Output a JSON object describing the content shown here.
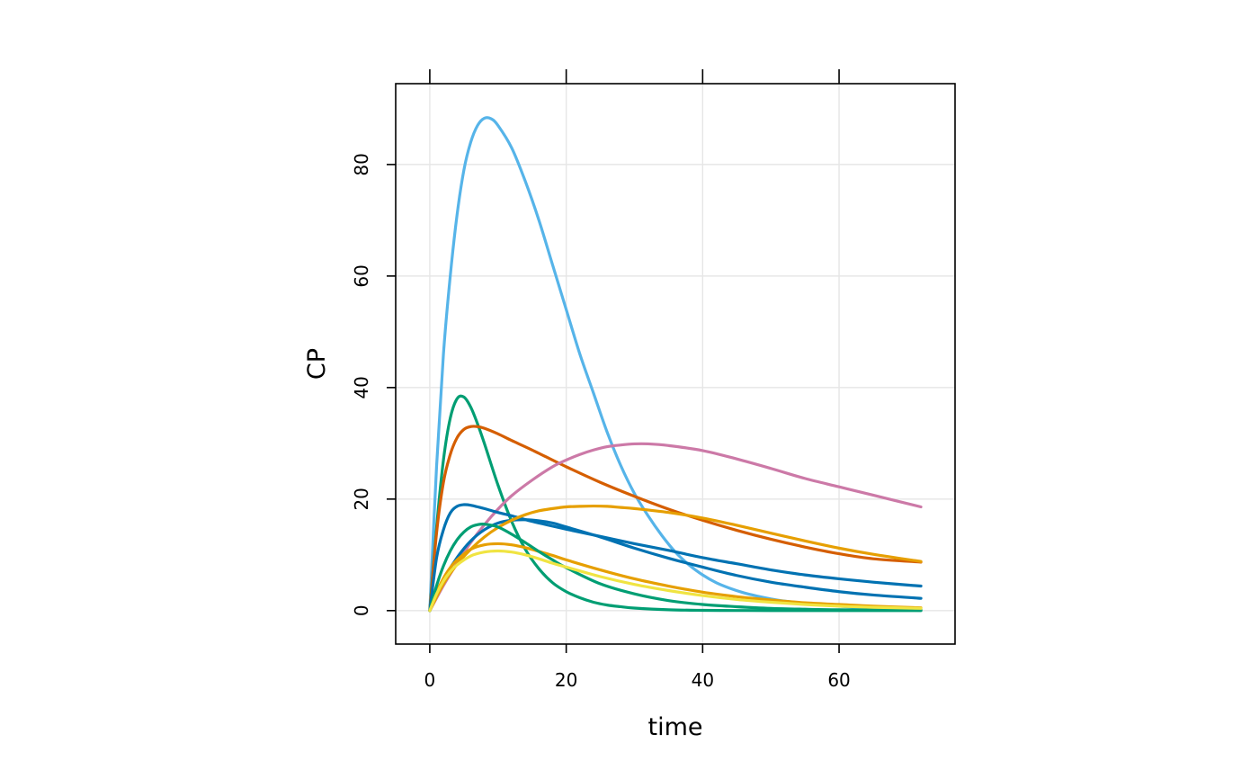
{
  "chart_data": {
    "type": "line",
    "title": "",
    "xlabel": "time",
    "ylabel": "CP",
    "xlim": [
      -5,
      77
    ],
    "ylim": [
      -6,
      94.5
    ],
    "xticks": [
      0,
      20,
      40,
      60
    ],
    "yticks": [
      0,
      20,
      40,
      60,
      80
    ],
    "grid": true,
    "legend": "none",
    "series": [
      {
        "color": "#56B4E9",
        "x": [
          0,
          1,
          2,
          3,
          4,
          5,
          6,
          7,
          8,
          9,
          10,
          12,
          14,
          16,
          18,
          20,
          22,
          24,
          26,
          28,
          30,
          32,
          34,
          36,
          38,
          40,
          42,
          44,
          46,
          48,
          50,
          52,
          55,
          58,
          60,
          64,
          68,
          72
        ],
        "y": [
          0,
          26,
          46,
          60,
          71,
          79,
          84,
          87,
          88.3,
          88.2,
          87,
          83,
          77,
          70,
          62,
          54,
          46,
          39,
          32,
          26,
          21,
          17,
          13.5,
          10.5,
          8.2,
          6.4,
          5,
          4,
          3.2,
          2.6,
          2.1,
          1.7,
          1.3,
          1.0,
          0.8,
          0.5,
          0.3,
          0.2
        ]
      },
      {
        "color": "#009E73",
        "x": [
          0,
          1,
          2,
          3,
          4,
          5,
          6,
          7,
          8,
          10,
          12,
          14,
          16,
          18,
          20,
          22,
          24,
          26,
          28,
          30,
          35,
          40,
          45,
          50,
          60,
          72
        ],
        "y": [
          0,
          15,
          27,
          34.5,
          38,
          38.3,
          36.5,
          33.5,
          30,
          22.5,
          16,
          11,
          7.5,
          5,
          3.4,
          2.3,
          1.5,
          1.0,
          0.7,
          0.45,
          0.15,
          0.05,
          0.02,
          0.01,
          0,
          0
        ]
      },
      {
        "color": "#D55E00",
        "x": [
          0,
          1,
          2,
          3,
          4,
          5,
          6,
          7,
          8,
          10,
          12,
          15,
          20,
          25,
          30,
          35,
          40,
          45,
          50,
          55,
          60,
          65,
          72
        ],
        "y": [
          0,
          14,
          23,
          28,
          31,
          32.5,
          33,
          33,
          32.7,
          31.7,
          30.5,
          28.8,
          25.8,
          23,
          20.5,
          18.2,
          16.2,
          14.4,
          12.8,
          11.4,
          10.2,
          9.3,
          8.7
        ]
      },
      {
        "color": "#CC79A7",
        "x": [
          0,
          2,
          4,
          6,
          8,
          10,
          12,
          15,
          18,
          20,
          22,
          24,
          26,
          28,
          30,
          32,
          35,
          40,
          45,
          50,
          55,
          60,
          65,
          72
        ],
        "y": [
          0,
          4.5,
          8.5,
          12.2,
          15.4,
          18.2,
          20.6,
          23.4,
          25.8,
          27,
          28,
          28.8,
          29.4,
          29.7,
          29.9,
          29.9,
          29.6,
          28.7,
          27.2,
          25.5,
          23.7,
          22.2,
          20.7,
          18.6
        ]
      },
      {
        "color": "#0072B2",
        "x": [
          0,
          1,
          2,
          3,
          4,
          5,
          6,
          8,
          10,
          12,
          15,
          20,
          25,
          30,
          35,
          40,
          45,
          50,
          55,
          60,
          65,
          72
        ],
        "y": [
          0,
          9.5,
          14.5,
          17.5,
          18.7,
          19,
          18.9,
          18.3,
          17.6,
          17,
          16,
          14.6,
          13.3,
          12,
          10.8,
          9.5,
          8.4,
          7.3,
          6.4,
          5.7,
          5.1,
          4.4
        ]
      },
      {
        "color": "#0072B2",
        "x": [
          0,
          2,
          4,
          6,
          8,
          10,
          12,
          14,
          16,
          18,
          20,
          25,
          30,
          35,
          40,
          45,
          50,
          55,
          60,
          65,
          72
        ],
        "y": [
          0,
          5.5,
          9.5,
          12.5,
          14.5,
          15.7,
          16.2,
          16.3,
          16.1,
          15.7,
          15,
          13.2,
          11.2,
          9.4,
          7.8,
          6.3,
          5.1,
          4.2,
          3.4,
          2.8,
          2.2
        ]
      },
      {
        "color": "#E69F00",
        "x": [
          0,
          2,
          4,
          6,
          8,
          10,
          12,
          14,
          16,
          18,
          20,
          22,
          24,
          26,
          28,
          30,
          35,
          40,
          45,
          50,
          55,
          60,
          65,
          72
        ],
        "y": [
          0,
          4.8,
          8.3,
          11,
          13.2,
          14.9,
          16.2,
          17.2,
          17.9,
          18.3,
          18.6,
          18.7,
          18.75,
          18.7,
          18.5,
          18.3,
          17.6,
          16.6,
          15.3,
          13.9,
          12.5,
          11.2,
          10.1,
          8.8
        ]
      },
      {
        "color": "#E69F00",
        "x": [
          0,
          1,
          2,
          3,
          4,
          6,
          8,
          10,
          12,
          14,
          16,
          18,
          20,
          25,
          30,
          35,
          40,
          45,
          50,
          55,
          60,
          65,
          72
        ],
        "y": [
          0,
          3.3,
          5.8,
          7.7,
          9.1,
          11,
          11.8,
          12,
          11.8,
          11.3,
          10.6,
          9.9,
          9.1,
          7.3,
          5.7,
          4.4,
          3.3,
          2.5,
          1.9,
          1.4,
          1.1,
          0.8,
          0.5
        ]
      },
      {
        "color": "#009E73",
        "x": [
          0,
          1,
          2,
          3,
          4,
          5,
          6,
          7,
          8,
          10,
          12,
          14,
          16,
          18,
          20,
          25,
          30,
          35,
          40,
          45,
          50,
          55,
          60,
          72
        ],
        "y": [
          0,
          4.5,
          8,
          10.7,
          12.7,
          14.1,
          15,
          15.4,
          15.5,
          15,
          13.7,
          12.2,
          10.6,
          9.1,
          7.7,
          4.8,
          3,
          1.8,
          1.1,
          0.7,
          0.4,
          0.25,
          0.15,
          0.05
        ]
      },
      {
        "color": "#F0E442",
        "x": [
          0,
          1,
          2,
          3,
          4,
          6,
          8,
          10,
          12,
          14,
          16,
          18,
          20,
          25,
          30,
          35,
          40,
          45,
          50,
          55,
          60,
          65,
          72
        ],
        "y": [
          0,
          3.0,
          5.3,
          7.0,
          8.2,
          9.8,
          10.5,
          10.7,
          10.5,
          10,
          9.3,
          8.5,
          7.8,
          6.1,
          4.7,
          3.6,
          2.7,
          2,
          1.5,
          1.1,
          0.8,
          0.6,
          0.4
        ]
      }
    ]
  }
}
